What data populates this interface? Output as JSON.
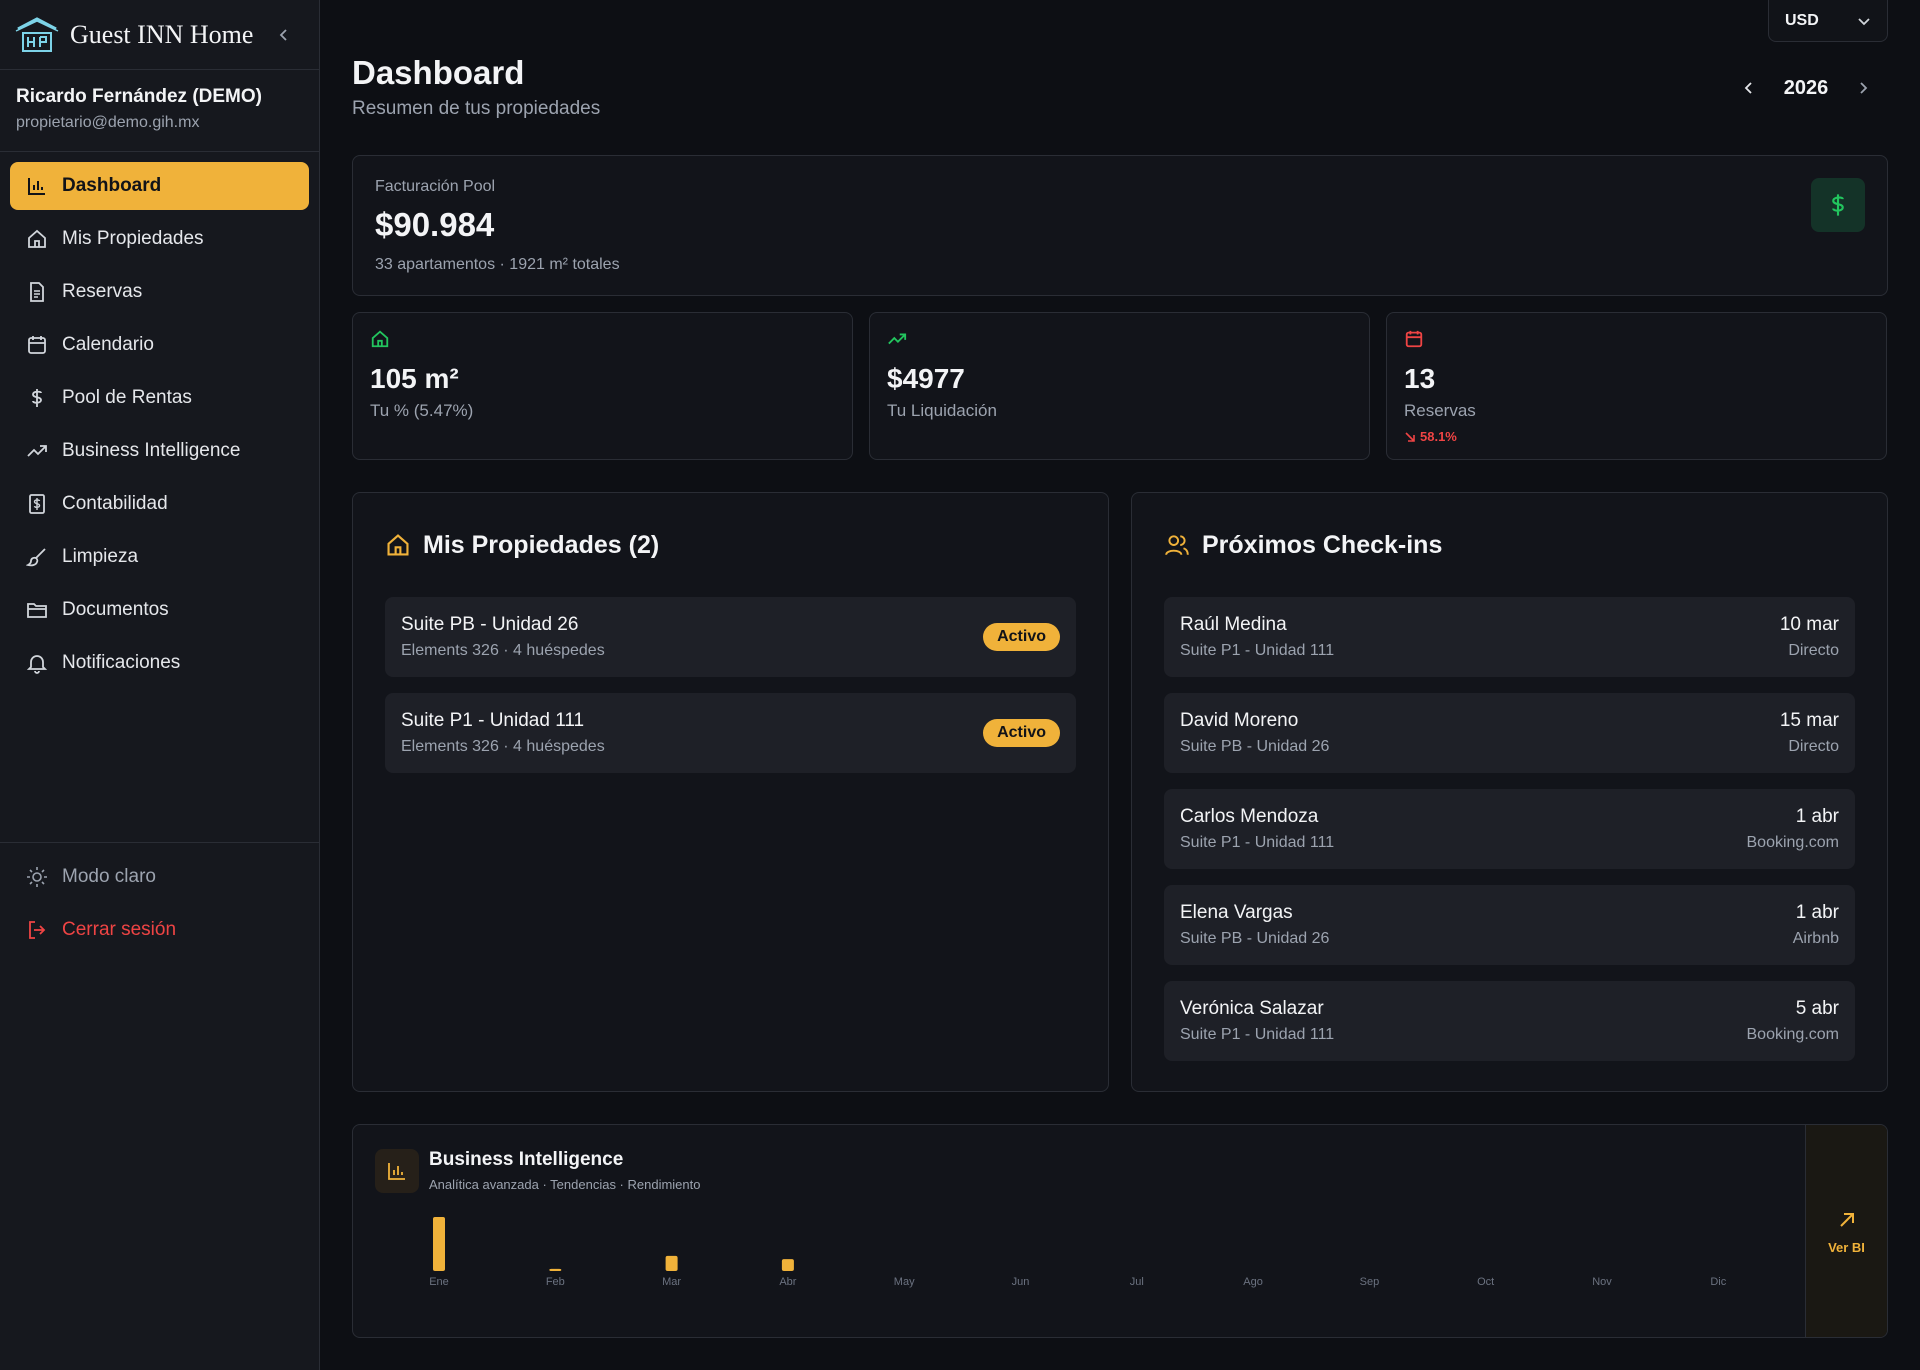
{
  "app": {
    "name": "Guest INN Home"
  },
  "user": {
    "name": "Ricardo Fernández (DEMO)",
    "email": "propietario@demo.gih.mx"
  },
  "sidebar": {
    "items": [
      {
        "label": "Dashboard",
        "icon": "bar-chart-icon",
        "active": true
      },
      {
        "label": "Mis Propiedades",
        "icon": "home-icon"
      },
      {
        "label": "Reservas",
        "icon": "document-icon"
      },
      {
        "label": "Calendario",
        "icon": "calendar-icon"
      },
      {
        "label": "Pool de Rentas",
        "icon": "dollar-icon"
      },
      {
        "label": "Business Intelligence",
        "icon": "trending-up-icon"
      },
      {
        "label": "Contabilidad",
        "icon": "receipt-icon"
      },
      {
        "label": "Limpieza",
        "icon": "brush-icon"
      },
      {
        "label": "Documentos",
        "icon": "folder-icon"
      },
      {
        "label": "Notificaciones",
        "icon": "bell-icon"
      }
    ],
    "theme_label": "Modo claro",
    "logout_label": "Cerrar sesión"
  },
  "header": {
    "currency": "USD",
    "title": "Dashboard",
    "subtitle": "Resumen de tus propiedades",
    "year": "2026"
  },
  "pool": {
    "label": "Facturación Pool",
    "value": "$90.984",
    "sub": "33 apartamentos · 1921 m² totales"
  },
  "stats": [
    {
      "value": "105 m²",
      "label": "Tu % (5.47%)",
      "icon": "home-icon",
      "color": "#22c55e"
    },
    {
      "value": "$4977",
      "label": "Tu Liquidación",
      "icon": "trending-up-icon",
      "color": "#22c55e"
    },
    {
      "value": "13",
      "label": "Reservas",
      "change": "58.1%",
      "icon": "calendar-icon",
      "color": "#ef4444"
    }
  ],
  "properties": {
    "title": "Mis Propiedades (2)",
    "items": [
      {
        "name": "Suite PB - Unidad 26",
        "detail": "Elements 326 · 4 huéspedes",
        "status": "Activo"
      },
      {
        "name": "Suite P1 - Unidad 111",
        "detail": "Elements 326 · 4 huéspedes",
        "status": "Activo"
      }
    ]
  },
  "checkins": {
    "title": "Próximos Check-ins",
    "items": [
      {
        "guest": "Raúl Medina",
        "unit": "Suite P1 - Unidad 111",
        "date": "10 mar",
        "channel": "Directo"
      },
      {
        "guest": "David Moreno",
        "unit": "Suite PB - Unidad 26",
        "date": "15 mar",
        "channel": "Directo"
      },
      {
        "guest": "Carlos Mendoza",
        "unit": "Suite P1 - Unidad 111",
        "date": "1 abr",
        "channel": "Booking.com"
      },
      {
        "guest": "Elena Vargas",
        "unit": "Suite PB - Unidad 26",
        "date": "1 abr",
        "channel": "Airbnb"
      },
      {
        "guest": "Verónica Salazar",
        "unit": "Suite P1 - Unidad 111",
        "date": "5 abr",
        "channel": "Booking.com"
      }
    ]
  },
  "bi": {
    "title": "Business Intelligence",
    "subtitle": "Analítica avanzada · Tendencias · Rendimiento",
    "link_label": "Ver BI"
  },
  "chart_data": {
    "type": "bar",
    "categories": [
      "Ene",
      "Feb",
      "Mar",
      "Abr",
      "May",
      "Jun",
      "Jul",
      "Ago",
      "Sep",
      "Oct",
      "Nov",
      "Dic"
    ],
    "values": [
      100,
      4,
      28,
      22,
      0,
      0,
      0,
      0,
      0,
      0,
      0,
      0
    ],
    "ylim": [
      0,
      100
    ],
    "grid": false,
    "color": "#f0b23a"
  },
  "colors": {
    "accent": "#f0b23a",
    "success": "#22c55e",
    "danger": "#ef4444"
  }
}
